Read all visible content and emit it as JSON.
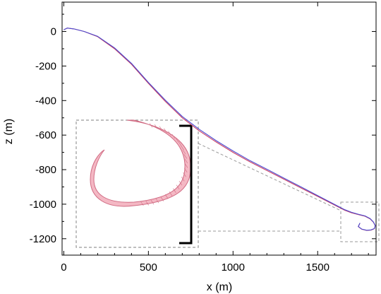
{
  "chart_data": {
    "type": "line",
    "title": "",
    "xlabel": "x (m)",
    "ylabel": "z (m)",
    "xlim": [
      -10,
      1845
    ],
    "ylim": [
      -1295,
      170
    ],
    "xticks": [
      0,
      500,
      1000,
      1500
    ],
    "yticks": [
      0,
      -200,
      -400,
      -600,
      -800,
      -1000,
      -1200
    ],
    "grid": false,
    "legend": "none",
    "colors": {
      "series_red": "#c83c64",
      "series_blue": "#4a4ad0",
      "inset_fill": "#f4b8c4",
      "inset_stroke": "#d06a82",
      "inset_box": "#999999",
      "scale_bar": "#000000"
    },
    "series": [
      {
        "color": "#c83c64",
        "x": [
          0,
          20,
          60,
          120,
          200,
          300,
          400,
          500,
          600,
          700,
          800,
          900,
          1000,
          1100,
          1200,
          1300,
          1400,
          1500,
          1600,
          1660,
          1700,
          1740,
          1780,
          1810,
          1830,
          1840,
          1835,
          1815,
          1790,
          1760,
          1740,
          1750
        ],
        "y": [
          10,
          20,
          15,
          0,
          -30,
          -100,
          -190,
          -300,
          -405,
          -500,
          -575,
          -640,
          -700,
          -755,
          -805,
          -855,
          -905,
          -955,
          -1005,
          -1035,
          -1050,
          -1060,
          -1070,
          -1085,
          -1105,
          -1125,
          -1142,
          -1150,
          -1152,
          -1145,
          -1130,
          -1110
        ]
      },
      {
        "color": "#4a4ad0",
        "x": [
          0,
          20,
          60,
          120,
          200,
          300,
          400,
          500,
          600,
          700,
          800,
          900,
          1000,
          1100,
          1200,
          1300,
          1400,
          1500,
          1600,
          1660,
          1700,
          1740,
          1780,
          1810,
          1830,
          1840,
          1835,
          1815,
          1790,
          1760,
          1740,
          1750
        ],
        "y": [
          10,
          20,
          15,
          0,
          -28,
          -95,
          -185,
          -295,
          -398,
          -492,
          -566,
          -632,
          -692,
          -748,
          -798,
          -849,
          -899,
          -950,
          -1001,
          -1032,
          -1047,
          -1058,
          -1068,
          -1083,
          -1104,
          -1124,
          -1141,
          -1149,
          -1151,
          -1144,
          -1129,
          -1109
        ]
      }
    ]
  }
}
